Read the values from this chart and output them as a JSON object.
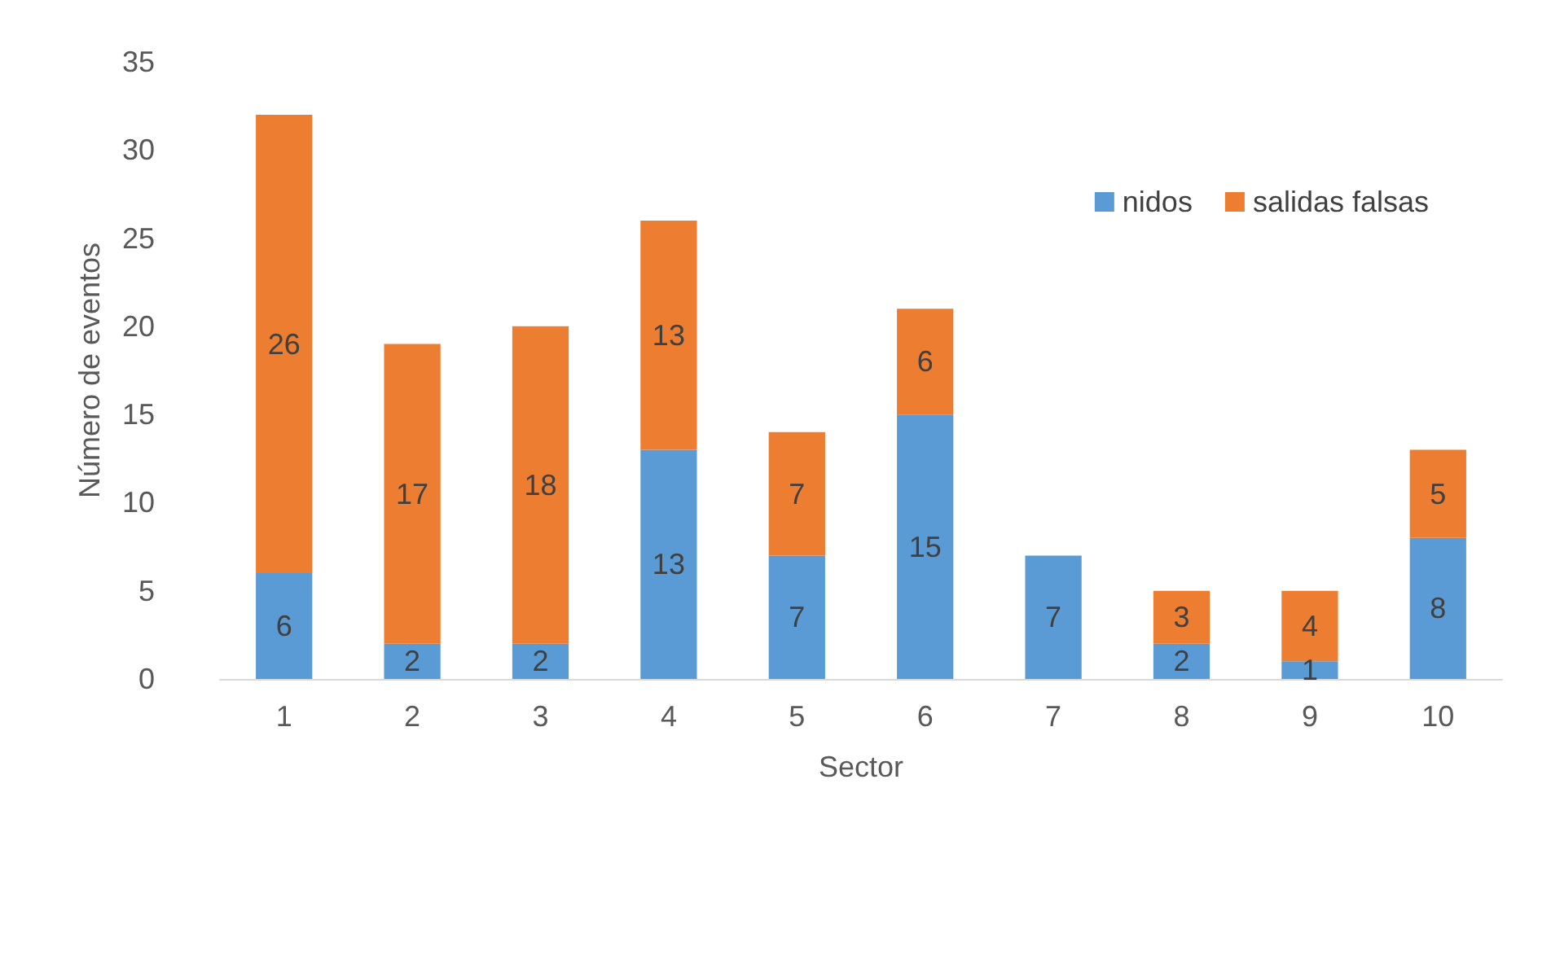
{
  "chart_data": {
    "type": "bar",
    "stacked": true,
    "xlabel": "Sector",
    "ylabel": "Número de eventos",
    "categories": [
      "1",
      "2",
      "3",
      "4",
      "5",
      "6",
      "7",
      "8",
      "9",
      "10"
    ],
    "series": [
      {
        "name": "nidos",
        "color": "#5b9bd5",
        "values": [
          6,
          2,
          2,
          13,
          7,
          15,
          7,
          2,
          1,
          8
        ]
      },
      {
        "name": "salidas falsas",
        "color": "#ed7d31",
        "values": [
          26,
          17,
          18,
          13,
          7,
          6,
          null,
          3,
          4,
          5
        ]
      }
    ],
    "ylim": [
      0,
      35
    ],
    "yticks": [
      0,
      5,
      10,
      15,
      20,
      25,
      30,
      35
    ],
    "grid": false,
    "legend": "top right",
    "data_labels": true
  }
}
